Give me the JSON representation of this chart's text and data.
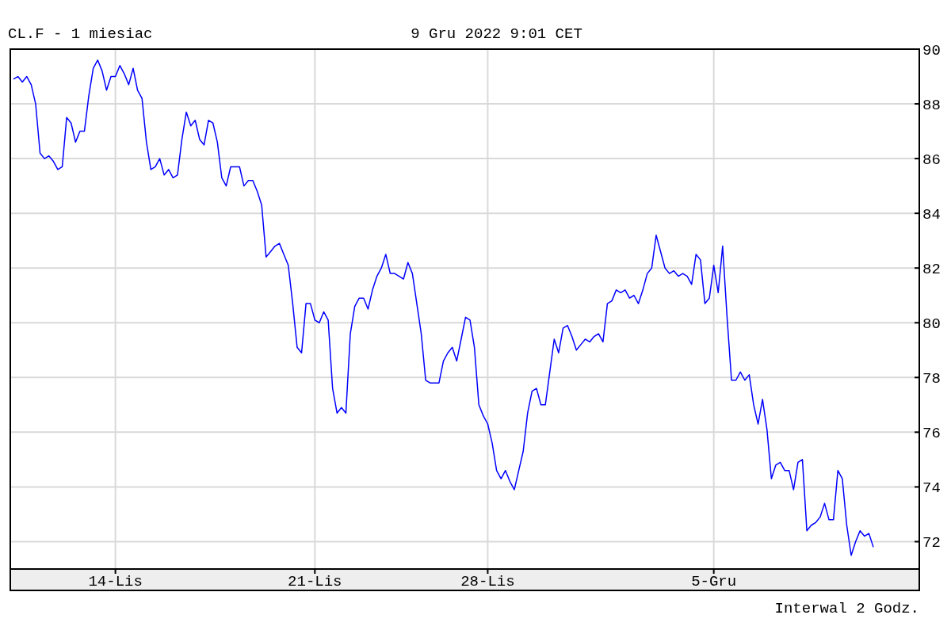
{
  "chart_data": {
    "type": "line",
    "title": "CL.F - 1 miesiac",
    "subtitle": "9 Gru 2022 9:01 CET",
    "annotations": [
      "Interwal 2 Godz."
    ],
    "categories": [
      null,
      null,
      null,
      null,
      null,
      null,
      null,
      null,
      null,
      null,
      null,
      null,
      null,
      null,
      null,
      null,
      null,
      null,
      null,
      null,
      null,
      null,
      null,
      "14-Lis",
      null,
      null,
      null,
      null,
      null,
      null,
      null,
      null,
      null,
      null,
      null,
      null,
      null,
      null,
      null,
      null,
      null,
      null,
      null,
      null,
      null,
      null,
      null,
      null,
      null,
      null,
      null,
      null,
      null,
      null,
      null,
      null,
      null,
      null,
      null,
      null,
      null,
      null,
      null,
      null,
      null,
      null,
      null,
      null,
      "21-Lis",
      null,
      null,
      null,
      null,
      null,
      null,
      null,
      null,
      null,
      null,
      null,
      null,
      null,
      null,
      null,
      null,
      null,
      null,
      null,
      null,
      null,
      null,
      null,
      null,
      null,
      null,
      null,
      null,
      null,
      null,
      null,
      null,
      null,
      null,
      null,
      null,
      null,
      null,
      "28-Lis",
      null,
      null,
      null,
      null,
      null,
      null,
      null,
      null,
      null,
      null,
      null,
      null,
      null,
      null,
      null,
      null,
      null,
      null,
      null,
      null,
      null,
      null,
      null,
      null,
      null,
      null,
      null,
      null,
      null,
      null,
      null,
      null,
      null,
      null,
      null,
      null,
      null,
      null,
      null,
      null,
      null,
      null,
      null,
      null,
      null,
      null,
      null,
      null,
      null,
      null,
      "5-Gru",
      null,
      null,
      null,
      null,
      null,
      null,
      null,
      null,
      null,
      null,
      null,
      null,
      null,
      null,
      null,
      null,
      null,
      null,
      null,
      null,
      null,
      null,
      null,
      null,
      null,
      null,
      null,
      null,
      null,
      null,
      null,
      null,
      null,
      null,
      null,
      null
    ],
    "ylim": [
      71,
      90
    ],
    "yticks": [
      72,
      74,
      76,
      78,
      80,
      82,
      84,
      86,
      88,
      90
    ],
    "grid": true,
    "series": [
      {
        "color": "#0000ff",
        "values": [
          88.9,
          89.0,
          88.8,
          89.0,
          88.7,
          88.0,
          86.2,
          86.0,
          86.1,
          85.9,
          85.6,
          85.7,
          87.5,
          87.3,
          86.6,
          87.0,
          87.0,
          88.3,
          89.3,
          89.6,
          89.2,
          88.5,
          89.0,
          89.0,
          89.4,
          89.1,
          88.7,
          89.3,
          88.5,
          88.2,
          86.6,
          85.6,
          85.7,
          86.0,
          85.4,
          85.6,
          85.3,
          85.4,
          86.7,
          87.7,
          87.2,
          87.4,
          86.7,
          86.5,
          87.4,
          87.3,
          86.6,
          85.3,
          85.0,
          85.7,
          85.7,
          85.7,
          85.0,
          85.2,
          85.2,
          84.8,
          84.3,
          82.4,
          82.6,
          82.8,
          82.9,
          82.5,
          82.1,
          80.7,
          79.1,
          78.9,
          80.7,
          80.7,
          80.1,
          80.0,
          80.4,
          80.1,
          77.6,
          76.7,
          76.9,
          76.7,
          79.6,
          80.6,
          80.9,
          80.9,
          80.5,
          81.2,
          81.7,
          82.0,
          82.5,
          81.8,
          81.8,
          81.7,
          81.6,
          82.2,
          81.8,
          80.7,
          79.6,
          77.9,
          77.8,
          77.8,
          77.8,
          78.6,
          78.9,
          79.1,
          78.6,
          79.4,
          80.2,
          80.1,
          79.1,
          77.0,
          76.6,
          76.3,
          75.6,
          74.6,
          74.3,
          74.6,
          74.2,
          73.9,
          74.6,
          75.3,
          76.7,
          77.5,
          77.6,
          77.0,
          77.0,
          78.2,
          79.4,
          78.9,
          79.8,
          79.9,
          79.5,
          79.0,
          79.2,
          79.4,
          79.3,
          79.5,
          79.6,
          79.3,
          80.7,
          80.8,
          81.2,
          81.1,
          81.2,
          80.9,
          81.0,
          80.7,
          81.2,
          81.8,
          82.0,
          83.2,
          82.6,
          82.0,
          81.8,
          81.9,
          81.7,
          81.8,
          81.7,
          81.4,
          82.5,
          82.3,
          80.7,
          80.9,
          82.1,
          81.1,
          82.8,
          80.2,
          77.9,
          77.9,
          78.2,
          77.9,
          78.1,
          77.0,
          76.3,
          77.2,
          76.1,
          74.3,
          74.8,
          74.9,
          74.6,
          74.6,
          73.9,
          74.9,
          75.0,
          72.4,
          72.6,
          72.7,
          72.9,
          73.4,
          72.8,
          72.8,
          74.6,
          74.3,
          72.6,
          71.5,
          72.0,
          72.4,
          72.2,
          72.3,
          71.8
        ]
      }
    ]
  }
}
